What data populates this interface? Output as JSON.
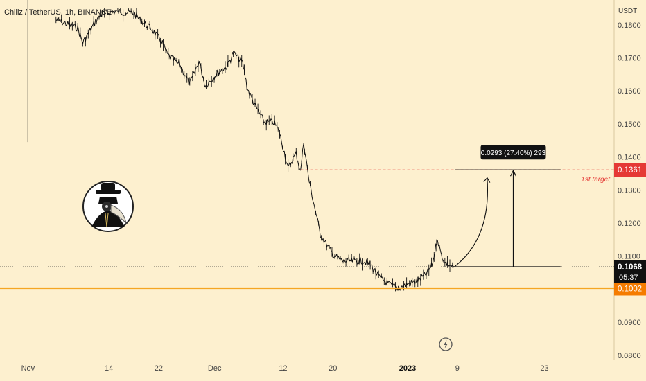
{
  "header": {
    "symbol_line": "Chiliz / TetherUS, 1h, BINANCE",
    "price_unit": "USDT"
  },
  "chart_data": {
    "type": "candlestick-line",
    "y_ticks": [
      "0.1800",
      "0.1700",
      "0.1600",
      "0.1500",
      "0.1400",
      "0.1300",
      "0.1200",
      "0.1100",
      "0.0900",
      "0.0800"
    ],
    "y_tick_values": [
      0.18,
      0.17,
      0.16,
      0.15,
      0.14,
      0.13,
      0.12,
      0.11,
      0.09,
      0.08
    ],
    "ylim": [
      0.0785,
      0.1875
    ],
    "x_ticks": [
      "Nov",
      "14",
      "22",
      "Dec",
      "12",
      "20",
      "2023",
      "9",
      "23"
    ],
    "x_tick_days": [
      0,
      13,
      21,
      30,
      41,
      49,
      61,
      69,
      83
    ],
    "xlim": [
      -4.5,
      94.2
    ],
    "series": [
      {
        "x": [
          4.5,
          8.0,
          8.8,
          11.0,
          12.0,
          14.0,
          17.0,
          18.3,
          20.0,
          21.0,
          21.6,
          22.4,
          24.5,
          26.0,
          27.5,
          28.5,
          30.5,
          32.0,
          33.0,
          34.5,
          35.3,
          36.5,
          38.0,
          39.5,
          40.3,
          41.2,
          41.8,
          42.6,
          43.1,
          43.8,
          44.3,
          45.2,
          47.0,
          49.0,
          50.5,
          52.0,
          54.0,
          55.0,
          56.5,
          58.0,
          59.5,
          61.0,
          62.5,
          64.0,
          65.0,
          65.8,
          66.3,
          67.0,
          67.8,
          68.5
        ],
        "y": [
          0.1815,
          0.179,
          0.1745,
          0.1815,
          0.1835,
          0.184,
          0.1835,
          0.181,
          0.1785,
          0.176,
          0.1745,
          0.171,
          0.1675,
          0.162,
          0.169,
          0.1615,
          0.1655,
          0.1675,
          0.1715,
          0.1685,
          0.1605,
          0.1555,
          0.1505,
          0.1505,
          0.148,
          0.1415,
          0.1365,
          0.1395,
          0.141,
          0.1355,
          0.1445,
          0.1325,
          0.1165,
          0.1105,
          0.1085,
          0.1085,
          0.1085,
          0.1075,
          0.1035,
          0.1015,
          0.1002,
          0.1015,
          0.1025,
          0.1045,
          0.1075,
          0.1155,
          0.111,
          0.108,
          0.1072,
          0.1068
        ]
      }
    ],
    "spikes": [
      {
        "x": 0.0,
        "top": 0.192,
        "bottom": 0.1445
      }
    ],
    "current_price": {
      "value": 0.1068,
      "label": "0.1068",
      "countdown": "05:37"
    },
    "support_line": {
      "value": 0.1002,
      "label": "0.1002"
    },
    "target_line": {
      "value": 0.1361,
      "label": "0.1361",
      "caption": "1st target"
    },
    "projection": {
      "from_x": 68.6,
      "to_x": 85.6,
      "from_y": 0.1068,
      "to_y": 0.1361,
      "measure_label": "0.0293 (27.40%) 293",
      "curve_to_x": 73.8,
      "curve_to_y": 0.1335
    }
  },
  "colors": {
    "background": "#fdf0cf",
    "price": "#111111",
    "support": "#f5a623",
    "support_badge": "#f57c00",
    "target": "#e53935",
    "badge_dark": "#111111",
    "axis_text": "#444444"
  },
  "icons": {
    "lightning": "lightning-bolt-icon",
    "avatar": "plague-doctor-avatar"
  }
}
